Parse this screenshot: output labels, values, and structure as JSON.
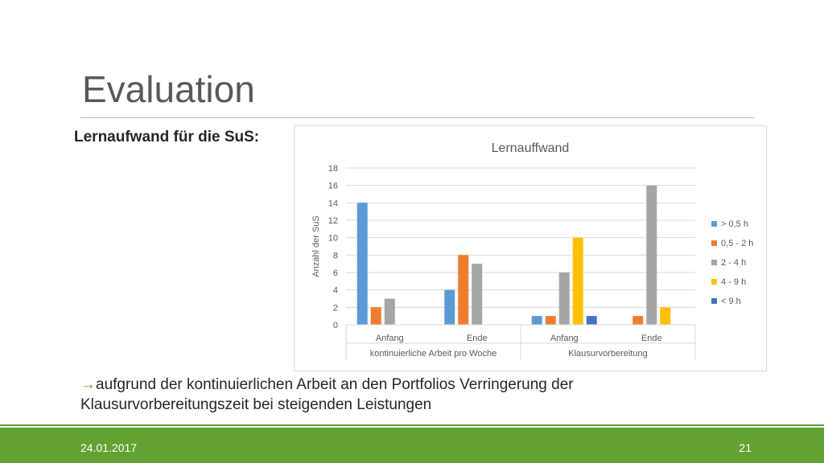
{
  "slide": {
    "title": "Evaluation",
    "subtitle": "Lernaufwand für die SuS:",
    "conclusion_arrow": "→",
    "conclusion_text": "aufgrund der kontinuierlichen Arbeit an den Portfolios Verringerung der Klausurvorbereitungszeit bei steigenden Leistungen",
    "footer_date": "24.01.2017",
    "footer_page": "21"
  },
  "chart_data": {
    "type": "bar",
    "title": "Lernauffwand",
    "ylabel": "Anzahl der SuS",
    "xlabel": "",
    "ylim": [
      0,
      18
    ],
    "yticks": [
      0,
      2,
      4,
      6,
      8,
      10,
      12,
      14,
      16,
      18
    ],
    "grid": true,
    "legend_position": "right",
    "categories": [
      "Anfang",
      "Ende",
      "Anfang",
      "Ende"
    ],
    "groups": [
      {
        "label": "kontinuierliche Arbeit pro Woche",
        "categories": [
          "Anfang",
          "Ende"
        ]
      },
      {
        "label": "Klausurvorbereitung",
        "categories": [
          "Anfang",
          "Ende"
        ]
      }
    ],
    "series": [
      {
        "name": "> 0,5 h",
        "color": "#5b9bd5",
        "values": [
          14,
          4,
          1,
          0
        ]
      },
      {
        "name": "0,5 - 2 h",
        "color": "#ed7d31",
        "values": [
          2,
          8,
          1,
          1
        ]
      },
      {
        "name": "2 - 4 h",
        "color": "#a5a5a5",
        "values": [
          3,
          7,
          6,
          16
        ]
      },
      {
        "name": "4 - 9 h",
        "color": "#ffc000",
        "values": [
          0,
          0,
          10,
          2
        ]
      },
      {
        "name": "< 9 h",
        "color": "#4472c4",
        "values": [
          0,
          0,
          1,
          0
        ]
      }
    ]
  }
}
